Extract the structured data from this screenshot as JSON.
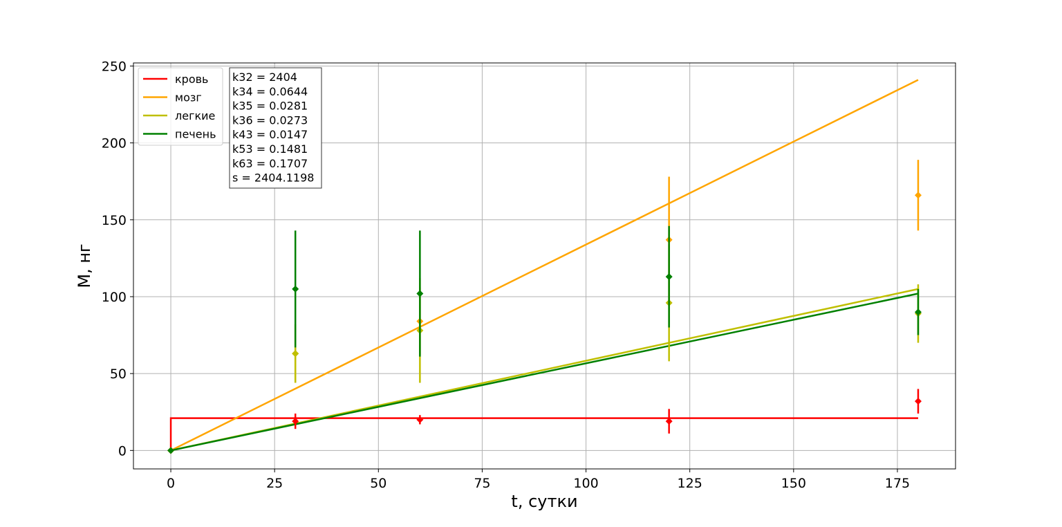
{
  "chart_data": {
    "type": "line",
    "title": "",
    "xlabel": "t, сутки",
    "ylabel": "M, нг",
    "xlim": [
      -9,
      189
    ],
    "ylim": [
      -12,
      252
    ],
    "xticks": [
      0,
      25,
      50,
      75,
      100,
      125,
      150,
      175
    ],
    "yticks": [
      0,
      50,
      100,
      150,
      200,
      250
    ],
    "grid": true,
    "legend_position": "top-left",
    "series": [
      {
        "name": "кровь",
        "color": "#ff0000",
        "line": [
          [
            0,
            0
          ],
          [
            0,
            21
          ],
          [
            180,
            21
          ]
        ],
        "points": [
          {
            "x": 0,
            "y": 0,
            "err": 0
          },
          {
            "x": 30,
            "y": 19,
            "err": 5
          },
          {
            "x": 60,
            "y": 20,
            "err": 3
          },
          {
            "x": 120,
            "y": 19,
            "err": 8
          },
          {
            "x": 180,
            "y": 32,
            "err": 8
          }
        ]
      },
      {
        "name": "мозг",
        "color": "#ffa500",
        "line": [
          [
            0,
            0
          ],
          [
            180,
            241
          ]
        ],
        "points": [
          {
            "x": 0,
            "y": 0,
            "err": 0
          },
          {
            "x": 30,
            "y": 63,
            "err": 19
          },
          {
            "x": 60,
            "y": 84,
            "err": 22
          },
          {
            "x": 120,
            "y": 137,
            "err": 41
          },
          {
            "x": 180,
            "y": 166,
            "err": 23
          }
        ]
      },
      {
        "name": "легкие",
        "color": "#bfbf00",
        "line": [
          [
            0,
            0
          ],
          [
            180,
            105
          ]
        ],
        "points": [
          {
            "x": 0,
            "y": 0,
            "err": 0
          },
          {
            "x": 30,
            "y": 63,
            "err": 19
          },
          {
            "x": 60,
            "y": 78,
            "err": 34
          },
          {
            "x": 120,
            "y": 96,
            "err": 38
          },
          {
            "x": 180,
            "y": 89,
            "err": 19
          }
        ]
      },
      {
        "name": "печень",
        "color": "#008000",
        "line": [
          [
            0,
            0
          ],
          [
            180,
            102
          ]
        ],
        "points": [
          {
            "x": 0,
            "y": 0,
            "err": 0
          },
          {
            "x": 30,
            "y": 105,
            "err": 38
          },
          {
            "x": 60,
            "y": 102,
            "err": 41
          },
          {
            "x": 120,
            "y": 113,
            "err": 33
          },
          {
            "x": 180,
            "y": 90,
            "err": 15
          }
        ]
      }
    ],
    "parameters": [
      "k32 = 2404",
      "k34 = 0.0644",
      "k35 = 0.0281",
      "k36 = 0.0273",
      "k43 = 0.0147",
      "k53 = 0.1481",
      "k63 = 0.1707",
      "s = 2404.1198"
    ]
  }
}
